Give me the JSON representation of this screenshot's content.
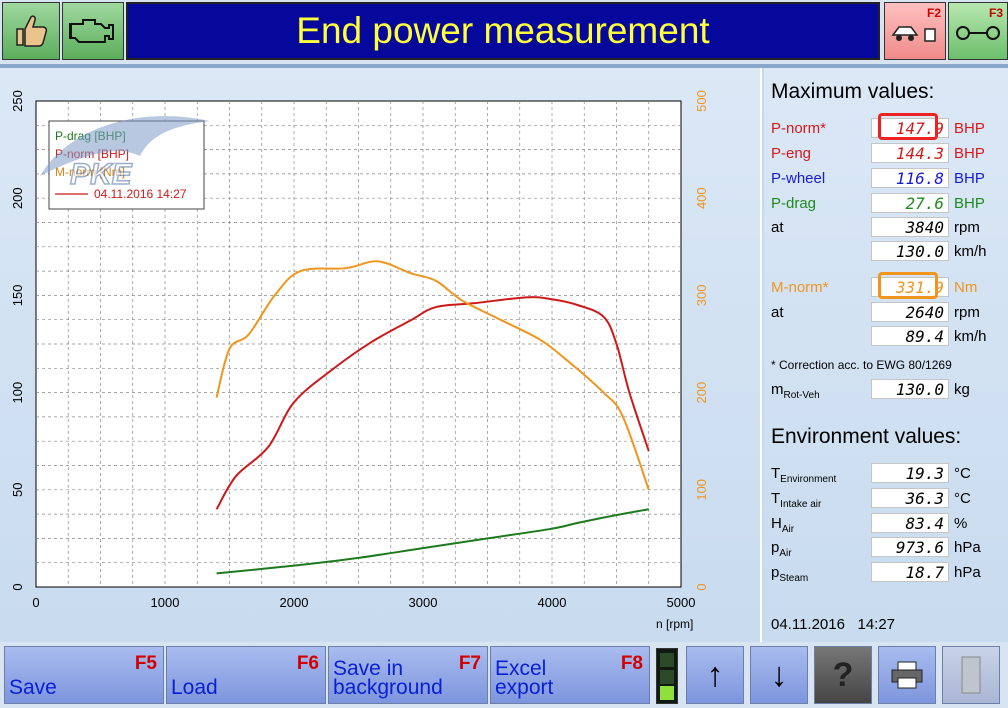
{
  "header": {
    "title": "End power measurement",
    "f2_label": "F2",
    "f3_label": "F3",
    "left_icons": [
      "thumbs-up-icon",
      "engine-icon"
    ],
    "logo_text": "PKE"
  },
  "chart_data": {
    "type": "line",
    "xlabel": "n [rpm]",
    "xlim": [
      0,
      5000
    ],
    "x_ticks": [
      "0",
      "1000",
      "2000",
      "3000",
      "4000",
      "5000"
    ],
    "ylim_left": [
      0,
      250
    ],
    "y_ticks_left": [
      "0",
      "50",
      "100",
      "150",
      "200",
      "250"
    ],
    "ylim_right": [
      0,
      500
    ],
    "y_ticks_right": [
      "0",
      "100",
      "200",
      "300",
      "400",
      "500"
    ],
    "grid": true,
    "legend_position": "top-left",
    "legend": [
      "P-drag [BHP]",
      "P-norm [BHP]",
      "M-norm [Nm]"
    ],
    "legend_date": "04.11.2016 14:27",
    "series": [
      {
        "name": "P-drag [BHP]",
        "axis": "left",
        "color": "#1e7a1e",
        "x": [
          1400,
          2000,
          2500,
          3000,
          3500,
          4000,
          4200,
          4500,
          4750
        ],
        "y": [
          7,
          11,
          15,
          20,
          25,
          30,
          33,
          37,
          40
        ]
      },
      {
        "name": "P-norm [BHP]",
        "axis": "left",
        "color": "#cc1a1a",
        "x": [
          1400,
          1550,
          1800,
          2000,
          2300,
          2600,
          2900,
          3100,
          3400,
          3800,
          4000,
          4200,
          4400,
          4500,
          4600,
          4750
        ],
        "y": [
          40,
          57,
          72,
          95,
          112,
          126,
          137,
          144,
          146,
          149,
          148,
          145,
          139,
          125,
          100,
          70
        ]
      },
      {
        "name": "M-norm [Nm]",
        "axis": "right",
        "color": "#f0961e",
        "x": [
          1400,
          1500,
          1650,
          1850,
          2050,
          2400,
          2650,
          2900,
          3100,
          3300,
          3600,
          3900,
          4100,
          4400,
          4550,
          4750
        ],
        "y": [
          195,
          245,
          260,
          300,
          325,
          328,
          335,
          323,
          315,
          295,
          275,
          255,
          235,
          200,
          175,
          100
        ]
      }
    ]
  },
  "max_values": {
    "title": "Maximum values:",
    "p_norm": {
      "label": "P-norm*",
      "value": "147.9",
      "unit": "BHP"
    },
    "p_eng": {
      "label": "P-eng",
      "value": "144.3",
      "unit": "BHP"
    },
    "p_wheel": {
      "label": "P-wheel",
      "value": "116.8",
      "unit": "BHP"
    },
    "p_drag": {
      "label": "P-drag",
      "value": "27.6",
      "unit": "BHP"
    },
    "at1_rpm": {
      "label": "at",
      "value": "3840",
      "unit": "rpm"
    },
    "at1_kmh": {
      "value": "130.0",
      "unit": "km/h"
    },
    "m_norm": {
      "label": "M-norm*",
      "value": "331.9",
      "unit": "Nm"
    },
    "at2_rpm": {
      "label": "at",
      "value": "2640",
      "unit": "rpm"
    },
    "at2_kmh": {
      "value": "89.4",
      "unit": "km/h"
    },
    "note": "* Correction acc. to EWG 80/1269",
    "m_rot": {
      "label": "m",
      "sub": "Rot-Veh",
      "value": "130.0",
      "unit": "kg"
    }
  },
  "environment": {
    "title": "Environment values:",
    "t_env": {
      "label": "T",
      "sub": "Environment",
      "value": "19.3",
      "unit": "°C"
    },
    "t_intake": {
      "label": "T",
      "sub": "Intake air",
      "value": "36.3",
      "unit": "°C"
    },
    "h_air": {
      "label": "H",
      "sub": "Air",
      "value": "83.4",
      "unit": "%"
    },
    "p_air": {
      "label": "p",
      "sub": "Air",
      "value": "973.6",
      "unit": "hPa"
    },
    "p_steam": {
      "label": "p",
      "sub": "Steam",
      "value": "18.7",
      "unit": "hPa"
    },
    "date": "04.11.2016",
    "time": "14:27"
  },
  "footer": {
    "save": {
      "label": "Save",
      "key": "F5"
    },
    "load": {
      "label": "Load",
      "key": "F6"
    },
    "save_bg": {
      "label1": "Save in",
      "label2": "background",
      "key": "F7"
    },
    "excel": {
      "label1": "Excel",
      "label2": "export",
      "key": "F8"
    },
    "up_icon": "↑",
    "down_icon": "↓",
    "help_icon": "?"
  }
}
